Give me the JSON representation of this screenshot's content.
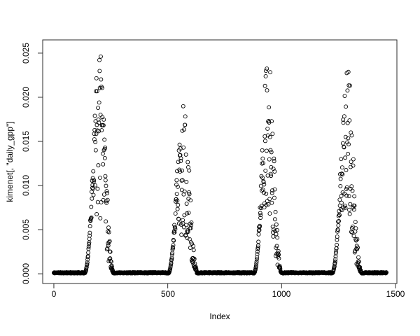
{
  "figure": {
    "background_color": "#ffffff",
    "frame_color": "#2b2b2b"
  },
  "chart_data": {
    "type": "scatter",
    "title": "",
    "xlabel": "Index",
    "ylabel": "kimenet[, \"daily_gpp\"]",
    "marker": "open-circle",
    "marker_radius_px": 2.5,
    "point_color": "#000000",
    "grid": false,
    "legend": false,
    "x_ticks": [
      0,
      500,
      1000,
      1500
    ],
    "x_tick_labels": [
      "0",
      "500",
      "1000",
      "1500"
    ],
    "y_ticks": [
      0,
      0.005,
      0.01,
      0.015,
      0.02,
      0.025
    ],
    "y_tick_labels": [
      "0.000",
      "0.005",
      "0.010",
      "0.015",
      "0.020",
      "0.025"
    ],
    "x_domain": [
      -49,
      1506
    ],
    "y_domain": [
      -0.0011,
      0.0265
    ],
    "n_points": 1461,
    "baseline_value": 0.0001,
    "description": "Daily GPP time series over four annual cycles: values near zero through winter (dense overplotted band), steep spring rise, widely scattered summer maxima, autumn decline back to zero.",
    "seasons": [
      {
        "start": 128,
        "end": 272,
        "peak": 0.0255
      },
      {
        "start": 495,
        "end": 640,
        "peak": 0.0205
      },
      {
        "start": 872,
        "end": 1008,
        "peak": 0.0255
      },
      {
        "start": 1215,
        "end": 1360,
        "peak": 0.0244
      }
    ],
    "envelope_exponent": 3.2,
    "noise_seed": 11
  }
}
